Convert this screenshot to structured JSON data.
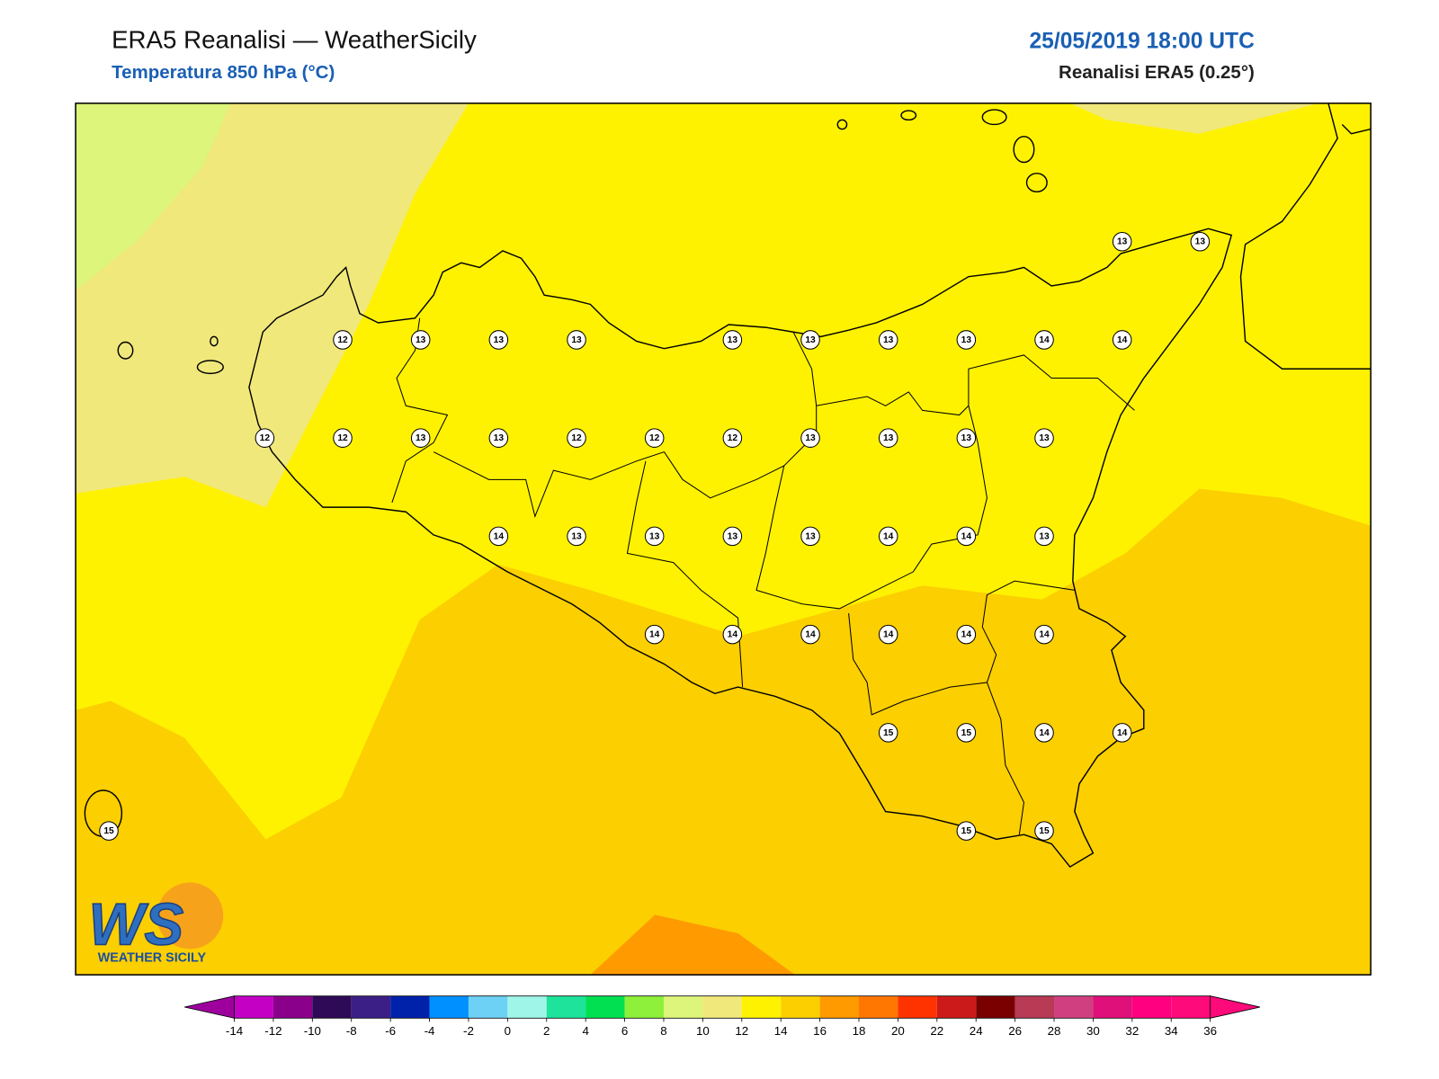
{
  "header": {
    "title": "ERA5 Reanalisi — WeatherSicily",
    "subtitle": "Temperatura 850 hPa (°C)",
    "datetime": "25/05/2019 18:00 UTC",
    "source": "Reanalisi ERA5 (0.25°)"
  },
  "stations": {
    "rows": [
      [
        null,
        null,
        null,
        null,
        null,
        null,
        null,
        null,
        null,
        null,
        null,
        null,
        null,
        13,
        13
      ],
      [
        null,
        null,
        null,
        12,
        13,
        13,
        13,
        null,
        13,
        13,
        13,
        13,
        14,
        14,
        null
      ],
      [
        null,
        null,
        12,
        12,
        13,
        13,
        12,
        12,
        12,
        13,
        13,
        13,
        13,
        null,
        null
      ],
      [
        null,
        null,
        null,
        null,
        null,
        14,
        13,
        13,
        13,
        13,
        14,
        14,
        13,
        null,
        null
      ],
      [
        null,
        null,
        null,
        null,
        null,
        null,
        null,
        14,
        14,
        14,
        14,
        14,
        14,
        null,
        null
      ],
      [
        null,
        null,
        null,
        null,
        null,
        null,
        null,
        null,
        null,
        null,
        15,
        15,
        14,
        14,
        null
      ],
      [
        15,
        null,
        null,
        null,
        null,
        null,
        null,
        null,
        null,
        null,
        null,
        15,
        15,
        null,
        null
      ]
    ]
  },
  "colorbar": {
    "ticks": [
      -14,
      -12,
      -10,
      -8,
      -6,
      -4,
      -2,
      0,
      2,
      4,
      6,
      8,
      10,
      12,
      14,
      16,
      18,
      20,
      22,
      24,
      26,
      28,
      30,
      32,
      34,
      36
    ],
    "colors": [
      "#c400c4",
      "#8a008a",
      "#2e0a57",
      "#3b1f87",
      "#0022aa",
      "#0090ff",
      "#6dd0f5",
      "#9ef5e8",
      "#1ee39b",
      "#00e050",
      "#8ef03a",
      "#dcf57a",
      "#f0e87a",
      "#fff200",
      "#fccf00",
      "#ff9a00",
      "#ff7700",
      "#ff3300",
      "#cc1a1a",
      "#7a0000",
      "#b83a55",
      "#d04080",
      "#e0107a",
      "#ff0080",
      "#ff0a7a"
    ],
    "under_color": "#9e009e",
    "over_color": "#ff0a7a"
  },
  "logo": {
    "mark": "WS",
    "name": "WEATHER SICILY"
  }
}
